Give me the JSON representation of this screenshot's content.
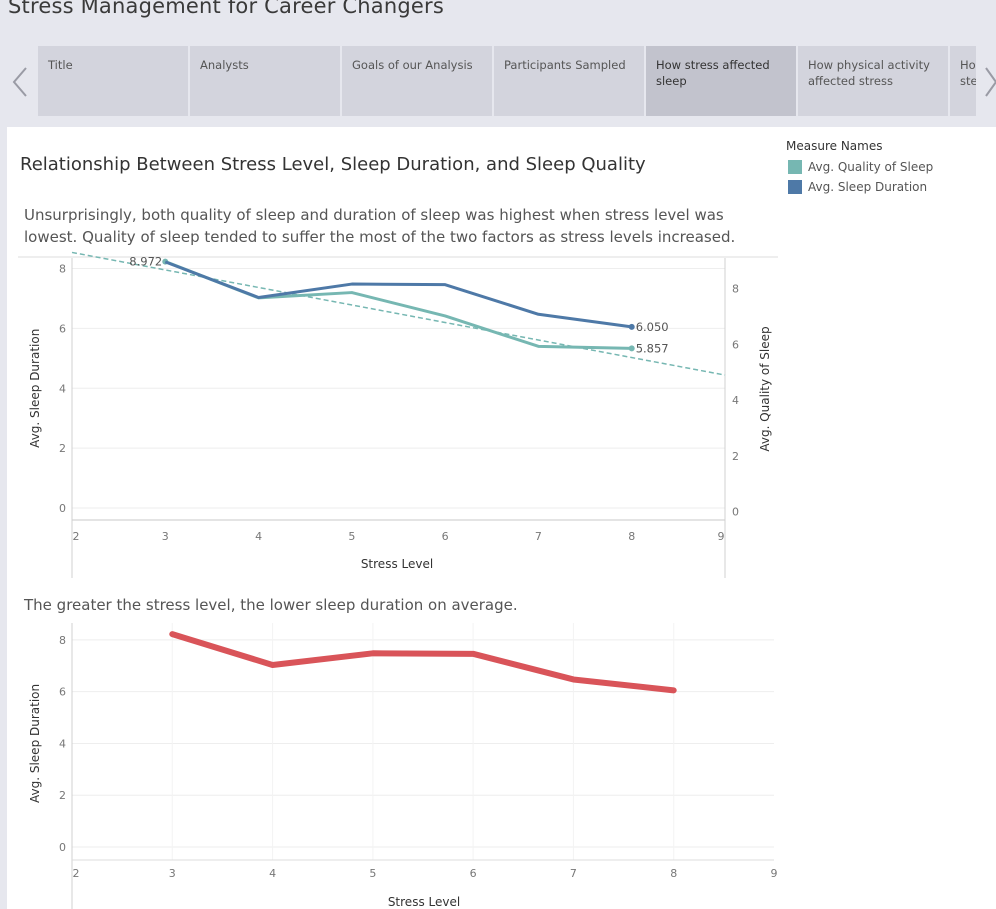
{
  "story": {
    "title": "Stress Management for Career Changers",
    "tabs": [
      {
        "label": "Title"
      },
      {
        "label": "Analysts"
      },
      {
        "label": "Goals of our Analysis"
      },
      {
        "label": "Participants Sampled"
      },
      {
        "label": "How stress affected sleep",
        "active": true
      },
      {
        "label": "How physical activity affected stress"
      },
      {
        "label": "How stress affected steps with age"
      }
    ]
  },
  "main": {
    "title": "Relationship Between Stress Level, Sleep Duration, and Sleep Quality",
    "caption1": "Unsurprisingly, both quality of sleep and duration of sleep was highest when stress level was lowest. Quality of sleep tended to suffer the most of the two factors as stress levels increased.",
    "caption2": "The greater the stress level, the lower sleep duration on average."
  },
  "legend": {
    "title": "Measure Names",
    "items": [
      {
        "label": "Avg. Quality of Sleep",
        "color": "#76b7b2"
      },
      {
        "label": "Avg. Sleep Duration",
        "color": "#4e79a7"
      }
    ]
  },
  "chart_data": [
    {
      "type": "line",
      "xlabel": "Stress Level",
      "ylabel_left": "Avg. Sleep Duration",
      "ylabel_right": "Avg. Quality of Sleep",
      "xlim": [
        2,
        9
      ],
      "ylim_left": [
        -0.4,
        8.35
      ],
      "ylim_right": [
        -0.3,
        9.1
      ],
      "x_ticks": [
        2,
        3,
        4,
        5,
        6,
        7,
        8,
        9
      ],
      "y_ticks_left": [
        0,
        2,
        4,
        6,
        8
      ],
      "y_ticks_right": [
        0,
        2,
        4,
        6,
        8
      ],
      "grid": true,
      "x": [
        3,
        4,
        5,
        6,
        7,
        8
      ],
      "series": [
        {
          "name": "Avg. Quality of Sleep",
          "axis": "right",
          "color": "#76b7b2",
          "values": [
            8.972,
            7.67,
            7.86,
            7.02,
            5.93,
            5.857
          ],
          "labels": {
            "3": "8.972",
            "8": "5.857"
          }
        },
        {
          "name": "Avg. Sleep Duration",
          "axis": "left",
          "color": "#4e79a7",
          "values": [
            8.22,
            7.03,
            7.48,
            7.46,
            6.47,
            6.05
          ],
          "labels": {
            "8": "6.050"
          }
        }
      ],
      "trendline": {
        "axis": "right",
        "from": [
          2,
          9.3
        ],
        "to": [
          9,
          4.9
        ],
        "color": "#76b7b2",
        "style": "dashed"
      }
    },
    {
      "type": "line",
      "xlabel": "Stress Level",
      "ylabel": "Avg. Sleep Duration",
      "xlim": [
        2,
        9
      ],
      "ylim": [
        -0.5,
        8.65
      ],
      "x_ticks": [
        2,
        3,
        4,
        5,
        6,
        7,
        8,
        9
      ],
      "y_ticks": [
        0,
        2,
        4,
        6,
        8
      ],
      "grid": true,
      "x": [
        3,
        4,
        5,
        6,
        7,
        8
      ],
      "series": [
        {
          "name": "Avg. Sleep Duration",
          "color": "#d95459",
          "values": [
            8.22,
            7.03,
            7.48,
            7.46,
            6.47,
            6.05
          ]
        }
      ]
    }
  ]
}
